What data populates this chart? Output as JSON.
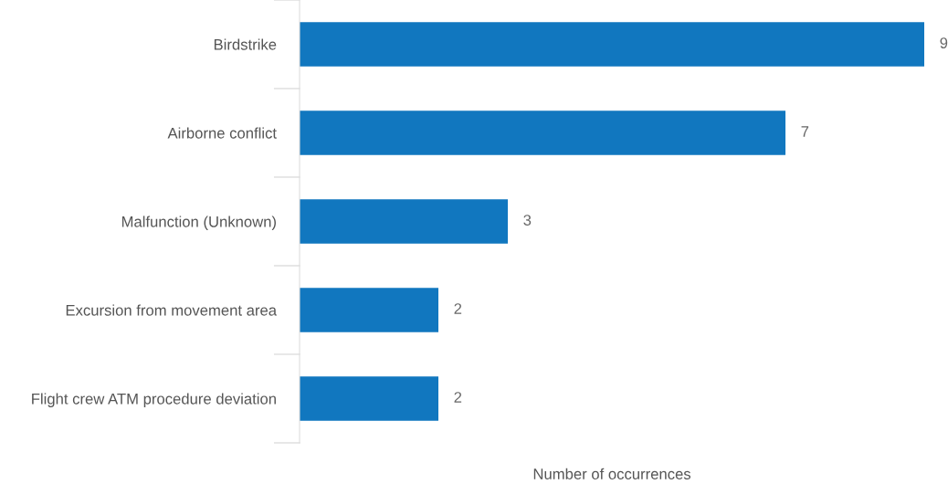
{
  "chart_data": {
    "type": "bar",
    "orientation": "horizontal",
    "categories": [
      "Birdstrike",
      "Airborne conflict",
      "Malfunction (Unknown)",
      "Excursion from movement area",
      "Flight crew ATM procedure deviation"
    ],
    "values": [
      9,
      7,
      3,
      2,
      2
    ],
    "color": "#1177bf",
    "data_labels": true,
    "xlabel": "Number of occurrences",
    "grid": false,
    "legend": false
  }
}
